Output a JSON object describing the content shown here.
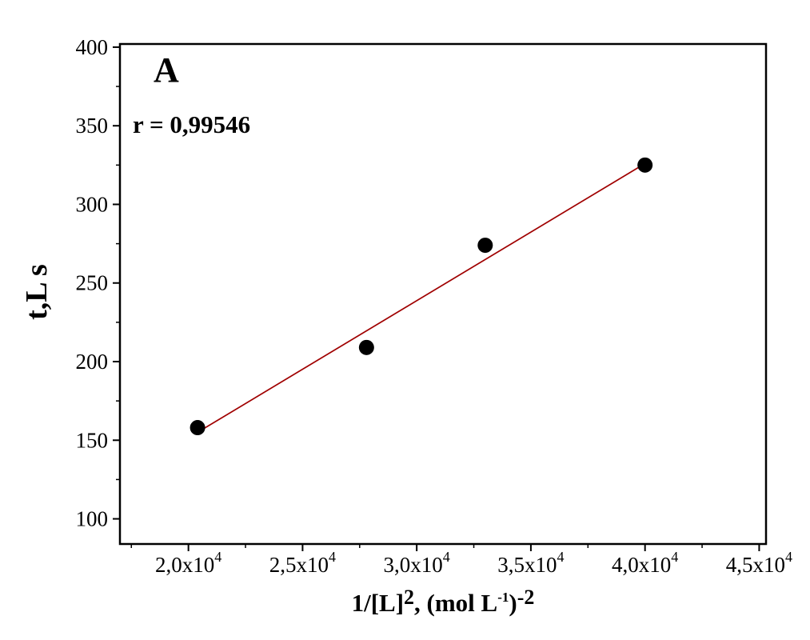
{
  "background": "#ffffff",
  "chart_data": {
    "type": "scatter",
    "panel_label": "A",
    "annotation": "r = 0,99546",
    "ylabel": "t,L s",
    "xlabel_parts": {
      "p1": "1/[L]",
      "s1": "2",
      "p2": ", (mol L",
      "s2": "-1",
      "p3": ")",
      "s3": "-2"
    },
    "xlim": [
      17000,
      45300
    ],
    "ylim": [
      84,
      402
    ],
    "x_ticks": [
      20000,
      25000,
      30000,
      35000,
      40000,
      45000
    ],
    "x_tick_labels": [
      {
        "mant": "2,0x10",
        "exp": "4"
      },
      {
        "mant": "2,5x10",
        "exp": "4"
      },
      {
        "mant": "3,0x10",
        "exp": "4"
      },
      {
        "mant": "3,5x10",
        "exp": "4"
      },
      {
        "mant": "4,0x10",
        "exp": "4"
      },
      {
        "mant": "4,5x10",
        "exp": "4"
      }
    ],
    "x_minor_ticks": [
      17500,
      22500,
      27500,
      32500,
      37500,
      42500
    ],
    "y_ticks": [
      100,
      150,
      200,
      250,
      300,
      350,
      400
    ],
    "y_tick_labels": [
      "100",
      "150",
      "200",
      "250",
      "300",
      "350",
      "400"
    ],
    "y_minor_ticks": [
      125,
      175,
      225,
      275,
      325,
      375
    ],
    "points": [
      {
        "x": 20400,
        "y": 158
      },
      {
        "x": 27800,
        "y": 209
      },
      {
        "x": 33000,
        "y": 274
      },
      {
        "x": 40000,
        "y": 325
      }
    ],
    "point_color": "#000000",
    "fit_line": {
      "x1": 20400,
      "y1": 155,
      "x2": 40000,
      "y2": 326,
      "color": "#a00000"
    },
    "grid": "off",
    "legend": "none"
  }
}
